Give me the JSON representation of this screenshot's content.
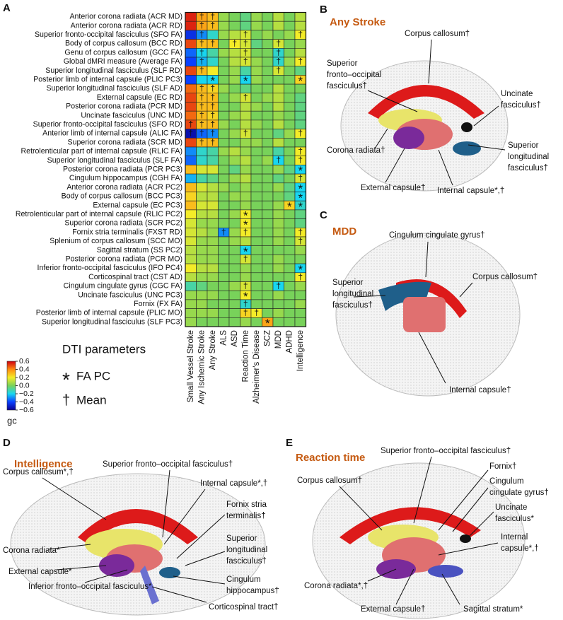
{
  "chart_data": {
    "type": "heatmap",
    "panel_label": "A",
    "rows": [
      "Anterior corona radiata (ACR MD)",
      "Anterior corona radiata (ACR RD)",
      "Superior fronto-occipital fasciculus (SFO FA)",
      "Body of corpus callosum (BCC RD)",
      "Genu of corpus callosum (GCC FA)",
      "Global dMRI measure (Average FA)",
      "Superior longitudinal fasciculus (SLF RD)",
      "Posterior limb of internal capsule (PLIC PC3)",
      "Superior longitudinal fasciculus (SLF AD)",
      "External capsule (EC RD)",
      "Posterior corona radiata (PCR MD)",
      "Uncinate fasciculus (UNC MD)",
      "Superior fronto-occipital fasciculus (SFO RD)",
      "Anterior limb of internal capsule (ALIC FA)",
      "Superior corona radiata (SCR MD)",
      "Retrolenticular part of internal capsule (RLIC FA)",
      "Superior longitudinal fasciculus (SLF FA)",
      "Posterior corona radiata (PCR PC3)",
      "Cingulum hippocampus (CGH FA)",
      "Anterior corona radiata (ACR PC2)",
      "Body of corpus callosum (BCC PC3)",
      "External capsule (EC PC3)",
      "Retrolenticular part of internal capsule (RLIC PC2)",
      "Superior corona radiata (SCR PC2)",
      "Fornix stria terminalis (FXST RD)",
      "Splenium of corpus callosum (SCC MO)",
      "Sagittal stratum (SS PC2)",
      "Posterior corona radiata (PCR MO)",
      "Inferior fronto-occipital fasciculus (IFO PC4)",
      "Corticospinal tract (CST AD)",
      "Cingulum cingulate gyrus (CGC FA)",
      "Uncinate fasciculus (UNC PC3)",
      "Fornix (FX FA)",
      "Posterior limb of internal capsule (PLIC MO)",
      "Superior longitudinal fasciculus (SLF PC3)"
    ],
    "columns": [
      "Small Vessel Stroke",
      "Any Ischemic Stroke",
      "Any Stroke",
      "ALS",
      "ASD",
      "Reaction Time",
      "Alzheimer's Disease",
      "SCZ",
      "MDD",
      "ADHD",
      "Intelligence"
    ],
    "values": [
      [
        0.55,
        0.35,
        0.3,
        0.05,
        0.0,
        -0.05,
        0.05,
        0.0,
        0.1,
        0.0,
        0.1
      ],
      [
        0.55,
        0.35,
        0.3,
        0.05,
        0.0,
        -0.05,
        0.05,
        0.0,
        0.1,
        0.0,
        0.1
      ],
      [
        -0.45,
        -0.3,
        -0.15,
        0.05,
        0.1,
        0.15,
        0.0,
        0.05,
        0.0,
        0.05,
        0.2
      ],
      [
        0.5,
        0.3,
        0.3,
        0.0,
        0.2,
        0.15,
        -0.05,
        0.0,
        0.15,
        0.0,
        0.05
      ],
      [
        -0.35,
        -0.2,
        -0.1,
        0.05,
        0.1,
        0.15,
        0.0,
        0.0,
        -0.15,
        0.0,
        0.1
      ],
      [
        -0.4,
        -0.25,
        -0.15,
        0.0,
        0.1,
        0.15,
        0.05,
        0.0,
        -0.15,
        0.05,
        0.2
      ],
      [
        0.5,
        0.3,
        0.2,
        0.0,
        0.05,
        -0.1,
        0.05,
        0.0,
        0.15,
        0.0,
        -0.05
      ],
      [
        -0.4,
        -0.2,
        -0.2,
        0.0,
        0.05,
        -0.2,
        0.05,
        0.0,
        0.0,
        0.0,
        0.25
      ],
      [
        0.45,
        0.3,
        0.25,
        0.05,
        0.0,
        -0.05,
        0.0,
        0.0,
        0.1,
        0.0,
        0.0
      ],
      [
        0.5,
        0.3,
        0.3,
        0.0,
        0.05,
        0.15,
        0.0,
        0.05,
        0.1,
        0.0,
        -0.05
      ],
      [
        0.5,
        0.3,
        0.3,
        0.0,
        0.0,
        0.1,
        0.05,
        0.0,
        0.1,
        0.0,
        -0.05
      ],
      [
        0.45,
        0.3,
        0.25,
        0.0,
        0.05,
        0.1,
        0.0,
        0.0,
        0.05,
        0.0,
        -0.05
      ],
      [
        0.5,
        0.3,
        0.3,
        0.05,
        0.0,
        0.1,
        0.05,
        0.0,
        0.1,
        0.0,
        -0.05
      ],
      [
        -0.55,
        -0.35,
        -0.3,
        0.0,
        0.05,
        0.15,
        0.0,
        0.0,
        -0.05,
        0.05,
        0.2
      ],
      [
        0.5,
        0.3,
        0.3,
        0.0,
        0.0,
        0.05,
        0.05,
        0.0,
        0.1,
        0.0,
        0.0
      ],
      [
        -0.3,
        -0.15,
        -0.1,
        0.05,
        0.1,
        0.05,
        0.0,
        0.0,
        -0.1,
        0.0,
        0.2
      ],
      [
        -0.35,
        -0.15,
        -0.1,
        0.0,
        0.05,
        0.1,
        0.0,
        0.05,
        -0.2,
        0.0,
        0.2
      ],
      [
        0.3,
        0.15,
        0.15,
        0.0,
        -0.05,
        0.05,
        0.0,
        0.0,
        0.05,
        -0.05,
        -0.2
      ],
      [
        -0.25,
        -0.1,
        -0.05,
        0.0,
        0.05,
        0.1,
        0.0,
        0.0,
        -0.05,
        0.0,
        0.15
      ],
      [
        0.3,
        0.15,
        0.1,
        0.05,
        0.0,
        0.05,
        0.0,
        0.0,
        0.05,
        -0.05,
        -0.2
      ],
      [
        0.25,
        0.1,
        0.1,
        0.0,
        0.05,
        0.05,
        0.0,
        0.0,
        0.0,
        -0.05,
        -0.2
      ],
      [
        0.3,
        0.15,
        0.15,
        0.0,
        0.0,
        0.05,
        0.0,
        0.0,
        0.05,
        0.25,
        -0.15
      ],
      [
        0.2,
        0.1,
        0.1,
        0.0,
        0.05,
        0.2,
        0.0,
        0.0,
        0.05,
        0.0,
        -0.05
      ],
      [
        0.15,
        0.05,
        0.05,
        0.0,
        0.0,
        0.2,
        0.0,
        0.0,
        0.05,
        0.0,
        -0.05
      ],
      [
        0.15,
        0.1,
        0.05,
        -0.3,
        0.05,
        0.2,
        0.0,
        0.0,
        0.05,
        0.0,
        0.2
      ],
      [
        0.15,
        0.05,
        0.05,
        0.0,
        0.05,
        0.1,
        0.0,
        0.0,
        0.05,
        0.0,
        0.15
      ],
      [
        0.1,
        0.05,
        0.05,
        0.0,
        0.0,
        -0.2,
        0.0,
        0.0,
        0.0,
        0.0,
        0.05
      ],
      [
        0.1,
        0.05,
        0.05,
        0.0,
        0.0,
        0.15,
        0.0,
        0.0,
        0.05,
        0.0,
        0.0
      ],
      [
        0.2,
        0.1,
        0.1,
        0.0,
        0.0,
        0.05,
        0.0,
        0.0,
        0.05,
        0.0,
        -0.2
      ],
      [
        0.1,
        0.05,
        0.05,
        0.0,
        0.0,
        0.05,
        0.0,
        0.0,
        0.0,
        0.0,
        0.2
      ],
      [
        -0.1,
        -0.05,
        0.0,
        0.0,
        0.05,
        0.15,
        0.0,
        0.0,
        -0.2,
        0.0,
        0.05
      ],
      [
        0.05,
        0.05,
        0.05,
        0.0,
        0.0,
        0.2,
        0.0,
        0.0,
        0.05,
        0.0,
        0.0
      ],
      [
        0.05,
        0.05,
        0.0,
        0.0,
        0.0,
        -0.15,
        0.0,
        0.0,
        0.0,
        0.0,
        0.05
      ],
      [
        0.05,
        0.05,
        0.05,
        0.0,
        0.0,
        0.25,
        0.2,
        0.0,
        0.05,
        0.0,
        0.0
      ],
      [
        0.05,
        0.0,
        0.0,
        0.0,
        0.0,
        0.05,
        0.0,
        0.35,
        0.0,
        0.0,
        0.0
      ]
    ],
    "markers": [
      [
        null,
        "†",
        "†",
        null,
        null,
        null,
        null,
        null,
        null,
        null,
        null
      ],
      [
        null,
        "†",
        "†",
        null,
        null,
        null,
        null,
        null,
        null,
        null,
        null
      ],
      [
        null,
        "†",
        null,
        null,
        null,
        "†",
        null,
        null,
        null,
        null,
        "†"
      ],
      [
        null,
        "†",
        "†",
        null,
        "†",
        "†",
        null,
        null,
        "†",
        null,
        null
      ],
      [
        null,
        "†",
        null,
        null,
        null,
        "†",
        null,
        null,
        "†",
        null,
        null
      ],
      [
        null,
        "†",
        null,
        null,
        null,
        "†",
        null,
        null,
        "†",
        null,
        "†"
      ],
      [
        null,
        "†",
        null,
        null,
        null,
        null,
        null,
        null,
        "†",
        null,
        null
      ],
      [
        null,
        null,
        "*",
        null,
        null,
        "*",
        null,
        null,
        null,
        null,
        "*"
      ],
      [
        null,
        "†",
        "†",
        null,
        null,
        null,
        null,
        null,
        null,
        null,
        null
      ],
      [
        null,
        "†",
        "†",
        null,
        null,
        "†",
        null,
        null,
        null,
        null,
        null
      ],
      [
        null,
        "†",
        "†",
        null,
        null,
        null,
        null,
        null,
        null,
        null,
        null
      ],
      [
        null,
        "†",
        "†",
        null,
        null,
        null,
        null,
        null,
        null,
        null,
        null
      ],
      [
        "†",
        "†",
        "†",
        null,
        null,
        null,
        null,
        null,
        null,
        null,
        null
      ],
      [
        "†",
        "†",
        "†",
        null,
        null,
        "†",
        null,
        null,
        null,
        null,
        "†"
      ],
      [
        null,
        "†",
        "†",
        null,
        null,
        null,
        null,
        null,
        null,
        null,
        null
      ],
      [
        null,
        null,
        null,
        null,
        null,
        null,
        null,
        null,
        null,
        null,
        "†"
      ],
      [
        null,
        null,
        null,
        null,
        null,
        null,
        null,
        null,
        "†",
        null,
        "†"
      ],
      [
        null,
        null,
        null,
        null,
        null,
        null,
        null,
        null,
        null,
        null,
        "*"
      ],
      [
        null,
        null,
        null,
        null,
        null,
        null,
        null,
        null,
        null,
        null,
        "†"
      ],
      [
        null,
        null,
        null,
        null,
        null,
        null,
        null,
        null,
        null,
        null,
        "*"
      ],
      [
        null,
        null,
        null,
        null,
        null,
        null,
        null,
        null,
        null,
        null,
        "*"
      ],
      [
        null,
        null,
        null,
        null,
        null,
        null,
        null,
        null,
        null,
        "*",
        "*"
      ],
      [
        null,
        null,
        null,
        null,
        null,
        "*",
        null,
        null,
        null,
        null,
        null
      ],
      [
        null,
        null,
        null,
        null,
        null,
        "*",
        null,
        null,
        null,
        null,
        null
      ],
      [
        null,
        null,
        null,
        "†",
        null,
        "†",
        null,
        null,
        null,
        null,
        "†"
      ],
      [
        null,
        null,
        null,
        null,
        null,
        null,
        null,
        null,
        null,
        null,
        "†"
      ],
      [
        null,
        null,
        null,
        null,
        null,
        "*",
        null,
        null,
        null,
        null,
        null
      ],
      [
        null,
        null,
        null,
        null,
        null,
        "†",
        null,
        null,
        null,
        null,
        null
      ],
      [
        null,
        null,
        null,
        null,
        null,
        null,
        null,
        null,
        null,
        null,
        "*"
      ],
      [
        null,
        null,
        null,
        null,
        null,
        null,
        null,
        null,
        null,
        null,
        "†"
      ],
      [
        null,
        null,
        null,
        null,
        null,
        "†",
        null,
        null,
        "†",
        null,
        null
      ],
      [
        null,
        null,
        null,
        null,
        null,
        "*",
        null,
        null,
        null,
        null,
        null
      ],
      [
        null,
        null,
        null,
        null,
        null,
        "†",
        null,
        null,
        null,
        null,
        null
      ],
      [
        null,
        null,
        null,
        null,
        null,
        "†",
        "†",
        null,
        null,
        null,
        null
      ],
      [
        null,
        null,
        null,
        null,
        null,
        null,
        null,
        "*",
        null,
        null,
        null
      ]
    ],
    "colormap": [
      "#0a0090",
      "#0a40ff",
      "#18d6f0",
      "#78d25a",
      "#f4ec28",
      "#ff8c10",
      "#d00010"
    ],
    "colorbar_title": "gc",
    "clim": [
      -0.6,
      0.6
    ],
    "cticks": [
      0.6,
      0.4,
      0.2,
      {
        "value": 0,
        "label": "0.0"
      },
      {
        "value": -0.2,
        "label": "−0.2"
      },
      {
        "value": -0.4,
        "label": "−0.4"
      },
      {
        "value": -0.6,
        "label": "−0.6"
      }
    ],
    "legend": {
      "title": "DTI parameters",
      "items": [
        {
          "symbol": "*",
          "label": "FA PC"
        },
        {
          "symbol": "†",
          "label": "Mean"
        }
      ]
    }
  },
  "brain_panels": [
    {
      "label": "B",
      "title": "Any Stroke",
      "annotations": [
        [
          "Corpus callosum†"
        ],
        [
          "Superior",
          "fronto–occipital",
          "fasciculus†"
        ],
        [
          "Uncinate",
          "fasciculus†"
        ],
        [
          "Corona radiata†"
        ],
        [
          "Superior",
          "longitudinal",
          "fasciculus†"
        ],
        [
          "External capsule†"
        ],
        [
          "Internal capsule*,†"
        ]
      ]
    },
    {
      "label": "C",
      "title": "MDD",
      "annotations": [
        [
          "Cingulum cingulate gyrus†"
        ],
        [
          "Corpus callosum†"
        ],
        [
          "Superior",
          "longitudinal",
          "fasciculus†"
        ],
        [
          "Internal capsule†"
        ]
      ]
    },
    {
      "label": "D",
      "title": "Intelligence",
      "annotations": [
        [
          "Superior fronto–occipital fasciculus†"
        ],
        [
          "Corpus callosum*,†"
        ],
        [
          "Internal capsule*,†"
        ],
        [
          "Fornix stria",
          "terminalis†"
        ],
        [
          "Superior",
          "longitudinal",
          "fasciculus†"
        ],
        [
          "Corona radiata*"
        ],
        [
          "External capsule*"
        ],
        [
          "Cingulum",
          "hippocampus†"
        ],
        [
          "Inferior fronto–occipital fasciculus*"
        ],
        [
          "Corticospinal tract†"
        ]
      ]
    },
    {
      "label": "E",
      "title": "Reaction time",
      "annotations": [
        [
          "Superior fronto–occipital  fasciculus†"
        ],
        [
          "Corpus callosum†"
        ],
        [
          "Fornix†"
        ],
        [
          "Cingulum",
          "cingulate gyrus†"
        ],
        [
          "Uncinate",
          "fasciculus*"
        ],
        [
          "Internal",
          "capsule*,†"
        ],
        [
          "Corona radiata*,†"
        ],
        [
          "External capsule†"
        ],
        [
          "Sagittal stratum*"
        ]
      ]
    }
  ]
}
